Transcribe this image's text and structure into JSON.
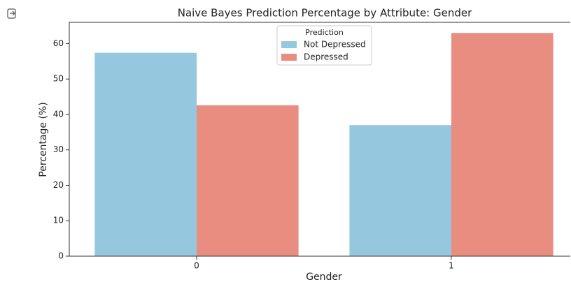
{
  "chart_data": {
    "type": "bar",
    "title": "Naive Bayes Prediction Percentage by Attribute: Gender",
    "x_label": "Gender",
    "y_label": "Percentage (%)",
    "categories": [
      "0",
      "1"
    ],
    "legend_title": "Prediction",
    "series": [
      {
        "name": "Not Depressed",
        "color": "#95c8de",
        "values": [
          57.4,
          37.0
        ]
      },
      {
        "name": "Depressed",
        "color": "#e88d80",
        "values": [
          42.6,
          63.0
        ]
      }
    ],
    "ylim": [
      0,
      66
    ],
    "yticks": [
      0,
      10,
      20,
      30,
      40,
      50,
      60
    ],
    "legend": "upper center"
  }
}
